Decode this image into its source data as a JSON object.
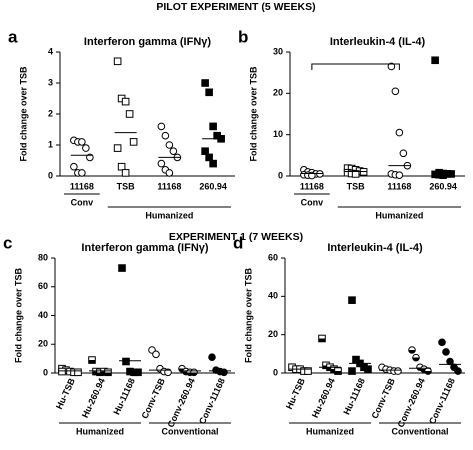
{
  "headings": [
    "PILOT EXPERIMENT (5 WEEKS)",
    "EXPERIMENT 1 (7 WEEKS)"
  ],
  "chart_data": [
    {
      "type": "dotplot",
      "panel_label": "a",
      "title": "Interferon gamma (IFNγ)",
      "y_label": "Fold change over TSB",
      "categories": [
        "11168",
        "TSB",
        "11168",
        "260.94"
      ],
      "groups": [
        "Conv",
        "Humanized"
      ],
      "markers": [
        "open-circle",
        "open-square",
        "open-circle",
        "filled-square"
      ],
      "values": [
        [
          1.15,
          1.1,
          1.1,
          0.9,
          0.6,
          0.3,
          0.1,
          0.1
        ],
        [
          3.7,
          2.5,
          2.4,
          2.0,
          1.1,
          0.9,
          0.3,
          0.1
        ],
        [
          1.6,
          1.3,
          1.0,
          0.8,
          0.6,
          0.4,
          0.2,
          0.1
        ],
        [
          3.0,
          2.7,
          1.6,
          1.3,
          1.2,
          0.8,
          0.6,
          0.4
        ]
      ],
      "means": [
        0.67,
        1.4,
        0.6,
        1.2
      ],
      "ylim": [
        0,
        4
      ],
      "yticks": [
        0,
        1,
        2,
        3,
        4
      ]
    },
    {
      "type": "dotplot",
      "panel_label": "b",
      "title": "Interleukin-4 (IL-4)",
      "y_label": "Fold change over TSB",
      "categories": [
        "11168",
        "TSB",
        "11168",
        "260.94"
      ],
      "groups": [
        "Conv",
        "Humanized"
      ],
      "markers": [
        "open-circle",
        "open-square",
        "open-circle",
        "filled-square"
      ],
      "values": [
        [
          1.5,
          1,
          0.8,
          0.5,
          0.5,
          0.3,
          0.2,
          0.1
        ],
        [
          1.9,
          1.8,
          1.5,
          1.2,
          1.0,
          0.8,
          0.6,
          0.5
        ],
        [
          26.5,
          20.5,
          10.5,
          5.5,
          2.5,
          0.5,
          0.3,
          0.2
        ],
        [
          28,
          0.8,
          0.6,
          0.5,
          0.5,
          0.4,
          0.3,
          0.2
        ]
      ],
      "means": [
        0.6,
        1.1,
        2.5,
        0.5
      ],
      "ylim": [
        0,
        30
      ],
      "yticks": [
        0,
        10,
        20,
        30
      ]
    },
    {
      "type": "dotplot",
      "panel_label": "c",
      "title": "Interferon gamma (IFNγ)",
      "y_label": "Fold change over TSB",
      "categories": [
        "Hu-TSB",
        "Hu-260.94",
        "Hu-11168",
        "Conv-TSB",
        "Conv-260.94",
        "Conv-11168"
      ],
      "groups": [
        "Humanized",
        "Conventional"
      ],
      "markers": [
        "open-square",
        "half-square",
        "filled-square",
        "open-circle",
        "half-circle",
        "filled-circle"
      ],
      "values": [
        [
          3,
          2,
          1,
          0.5,
          0.5,
          1
        ],
        [
          9,
          1,
          0.5,
          1,
          0.5
        ],
        [
          73,
          8,
          1,
          0.5,
          0.5
        ],
        [
          16,
          13,
          3,
          1,
          0.5
        ],
        [
          3,
          1,
          0.5,
          0.5
        ],
        [
          11,
          2,
          1,
          0.5
        ]
      ],
      "means": [
        1.5,
        1.5,
        8.5,
        2,
        1.5,
        1.5
      ],
      "ylim": [
        0,
        80
      ],
      "yticks": [
        0,
        20,
        40,
        60,
        80
      ]
    },
    {
      "type": "dotplot",
      "panel_label": "d",
      "title": "Interleukin-4 (IL-4)",
      "y_label": "Fold change over TSB",
      "categories": [
        "Hu-TSB",
        "Hu-260.94",
        "Hu-11168",
        "Conv-TSB",
        "Conv-260.94",
        "Conv-11168"
      ],
      "groups": [
        "Humanized",
        "Conventional"
      ],
      "markers": [
        "open-square",
        "half-square",
        "filled-square",
        "open-circle",
        "half-circle",
        "filled-circle"
      ],
      "values": [
        [
          3,
          2,
          2,
          1,
          1
        ],
        [
          18,
          4,
          3,
          2,
          1
        ],
        [
          38,
          7,
          5,
          3,
          2,
          1
        ],
        [
          3,
          2,
          1.5,
          1,
          1
        ],
        [
          12,
          8,
          3,
          2,
          1
        ],
        [
          16,
          11,
          6,
          3,
          1
        ]
      ],
      "means": [
        2,
        3,
        5,
        1.5,
        2.5,
        4.5
      ],
      "ylim": [
        0,
        60
      ],
      "yticks": [
        0,
        20,
        40,
        60
      ]
    }
  ]
}
